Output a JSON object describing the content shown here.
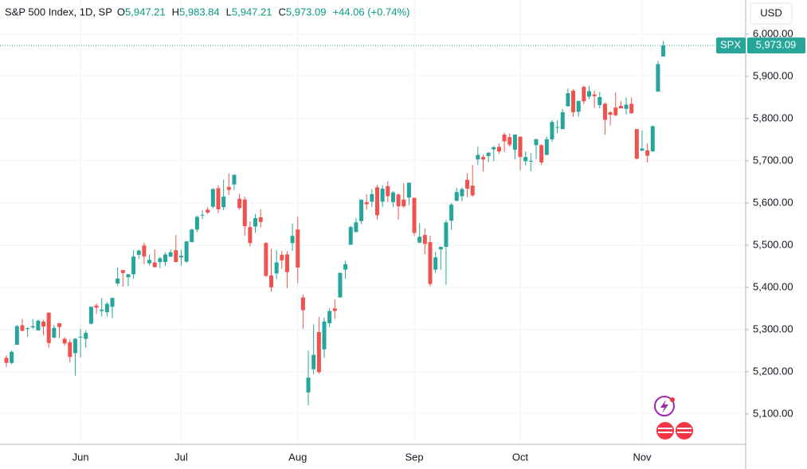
{
  "header": {
    "symbol": "S&P 500 Index, 1D, SP",
    "open_label": "O",
    "open": "5,947.21",
    "high_label": "H",
    "high": "5,983.84",
    "low_label": "L",
    "low": "5,947.21",
    "close_label": "C",
    "close": "5,973.09",
    "change": "+44.06 (+0.74%)"
  },
  "currency": "USD",
  "chart_data": {
    "type": "candlestick",
    "categories": [
      null,
      null,
      null,
      null,
      null,
      null,
      null,
      null,
      null,
      null,
      null,
      null,
      null,
      null,
      "Jun",
      null,
      null,
      null,
      null,
      null,
      null,
      null,
      null,
      null,
      null,
      null,
      null,
      null,
      null,
      null,
      null,
      null,
      null,
      "Jul",
      null,
      null,
      null,
      null,
      null,
      null,
      null,
      null,
      null,
      null,
      null,
      null,
      null,
      null,
      null,
      null,
      null,
      null,
      null,
      null,
      null,
      "Aug",
      null,
      null,
      null,
      null,
      null,
      null,
      null,
      null,
      null,
      null,
      null,
      null,
      null,
      null,
      null,
      null,
      null,
      null,
      null,
      null,
      null,
      "Sep",
      null,
      null,
      null,
      null,
      null,
      null,
      null,
      null,
      null,
      null,
      null,
      null,
      null,
      null,
      null,
      null,
      null,
      null,
      null,
      "Oct",
      null,
      null,
      null,
      null,
      null,
      null,
      null,
      null,
      null,
      null,
      null,
      null,
      null,
      null,
      null,
      null,
      null,
      null,
      null,
      null,
      null,
      null,
      "Nov",
      null,
      null,
      null,
      null
    ],
    "open": [
      5233,
      5221,
      5264,
      5310,
      5303,
      5305,
      5298,
      5319,
      5340,
      5281,
      5315,
      5278,
      5270,
      5244,
      5283,
      5278,
      5314,
      5357,
      5344,
      5341,
      5354,
      5409,
      5441,
      5424,
      5431,
      5477,
      5499,
      5457,
      5459,
      5460,
      5460,
      5473,
      5488,
      5471,
      5461,
      5507,
      5537,
      5572,
      5584,
      5591,
      5635,
      5590,
      5638,
      5644,
      5610,
      5608,
      5543,
      5544,
      5566,
      5505,
      5428,
      5433,
      5477,
      5478,
      5505,
      5537,
      5376,
      5151,
      5206,
      5294,
      5253,
      5315,
      5350,
      5376,
      5442,
      5501,
      5531,
      5557,
      5602,
      5603,
      5637,
      5603,
      5640,
      5602,
      5620,
      5608,
      5613,
      5612,
      5506,
      5524,
      5507,
      5442,
      5490,
      5496,
      5558,
      5605,
      5616,
      5655,
      5641,
      5703,
      5709,
      5711,
      5727,
      5733,
      5762,
      5756,
      5726,
      5757,
      5699,
      5698,
      5737,
      5737,
      5714,
      5751,
      5778,
      5775,
      5829,
      5866,
      5816,
      5875,
      5852,
      5857,
      5832,
      5835,
      5815,
      5826,
      5830,
      5823,
      5835,
      5775,
      5724,
      5725,
      5722,
      5864,
      5947.21
    ],
    "high": [
      5239,
      5250,
      5311,
      5325,
      5305,
      5325,
      5324,
      5323,
      5341,
      5311,
      5315,
      5282,
      5276,
      5280,
      5302,
      5298,
      5354,
      5362,
      5375,
      5365,
      5375,
      5447,
      5441,
      5432,
      5488,
      5490,
      5506,
      5478,
      5490,
      5472,
      5483,
      5490,
      5524,
      5489,
      5509,
      5539,
      5570,
      5583,
      5590,
      5635,
      5642,
      5655,
      5670,
      5667,
      5622,
      5615,
      5557,
      5574,
      5585,
      5508,
      5491,
      5488,
      5487,
      5486,
      5551,
      5567,
      5383,
      5250,
      5312,
      5330,
      5328,
      5351,
      5371,
      5436,
      5463,
      5546,
      5564,
      5608,
      5621,
      5633,
      5643,
      5642,
      5652,
      5628,
      5623,
      5647,
      5648,
      5613,
      5552,
      5540,
      5522,
      5484,
      5497,
      5560,
      5600,
      5636,
      5637,
      5670,
      5690,
      5733,
      5715,
      5721,
      5735,
      5741,
      5767,
      5765,
      5763,
      5758,
      5722,
      5718,
      5752,
      5739,
      5757,
      5796,
      5796,
      5822,
      5871,
      5870,
      5842,
      5878,
      5878,
      5866,
      5863,
      5838,
      5817,
      5862,
      5842,
      5850,
      5850,
      5775,
      5772,
      5741,
      5783,
      5936,
      5983.84
    ],
    "low": [
      5211,
      5218,
      5264,
      5296,
      5283,
      5302,
      5297,
      5286,
      5257,
      5279,
      5280,
      5262,
      5222,
      5191,
      5234,
      5257,
      5312,
      5337,
      5331,
      5331,
      5327,
      5403,
      5402,
      5403,
      5420,
      5468,
      5455,
      5452,
      5447,
      5446,
      5451,
      5471,
      5459,
      5451,
      5458,
      5507,
      5531,
      5562,
      5574,
      5587,
      5576,
      5583,
      5619,
      5631,
      5584,
      5522,
      5497,
      5529,
      5542,
      5425,
      5390,
      5420,
      5444,
      5398,
      5487,
      5410,
      5302,
      5120,
      5194,
      5195,
      5233,
      5306,
      5325,
      5376,
      5420,
      5501,
      5531,
      5550,
      5584,
      5591,
      5560,
      5590,
      5602,
      5590,
      5560,
      5588,
      5595,
      5522,
      5505,
      5479,
      5402,
      5434,
      5442,
      5406,
      5536,
      5604,
      5604,
      5614,
      5615,
      5690,
      5675,
      5697,
      5699,
      5716,
      5721,
      5733,
      5703,
      5677,
      5689,
      5675,
      5704,
      5690,
      5713,
      5745,
      5765,
      5775,
      5828,
      5804,
      5804,
      5834,
      5846,
      5825,
      5824,
      5762,
      5784,
      5805,
      5824,
      5810,
      5811,
      5703,
      5723,
      5696,
      5722,
      5864,
      5947.21
    ],
    "close": [
      5221,
      5247,
      5308,
      5297,
      5303,
      5308,
      5321,
      5307,
      5268,
      5304,
      5306,
      5267,
      5235,
      5278,
      5283,
      5292,
      5354,
      5352,
      5347,
      5361,
      5375,
      5421,
      5434,
      5431,
      5473,
      5487,
      5473,
      5465,
      5448,
      5469,
      5478,
      5483,
      5460,
      5475,
      5509,
      5537,
      5567,
      5572,
      5577,
      5633,
      5585,
      5615,
      5631,
      5667,
      5588,
      5545,
      5505,
      5564,
      5555,
      5427,
      5400,
      5459,
      5464,
      5436,
      5522,
      5447,
      5346,
      5186,
      5240,
      5199,
      5319,
      5344,
      5344,
      5434,
      5455,
      5543,
      5554,
      5608,
      5597,
      5621,
      5571,
      5634,
      5616,
      5625,
      5592,
      5592,
      5648,
      5529,
      5520,
      5503,
      5408,
      5471,
      5496,
      5554,
      5596,
      5626,
      5633,
      5634,
      5618,
      5714,
      5703,
      5719,
      5732,
      5722,
      5746,
      5738,
      5762,
      5709,
      5709,
      5700,
      5751,
      5696,
      5751,
      5792,
      5780,
      5815,
      5860,
      5815,
      5842,
      5841,
      5865,
      5853,
      5851,
      5797,
      5809,
      5808,
      5824,
      5833,
      5813,
      5705,
      5729,
      5712,
      5782,
      5929,
      5973.09
    ],
    "up_color": "#26a69a",
    "down_color": "#ef5350",
    "ylim": [
      5028,
      6081
    ],
    "yticks": [
      {
        "value": 5100,
        "label": "5,100.00"
      },
      {
        "value": 5200,
        "label": "5,200.00"
      },
      {
        "value": 5300,
        "label": "5,300.00"
      },
      {
        "value": 5400,
        "label": "5,400.00"
      },
      {
        "value": 5500,
        "label": "5,500.00"
      },
      {
        "value": 5600,
        "label": "5,600.00"
      },
      {
        "value": 5700,
        "label": "5,700.00"
      },
      {
        "value": 5800,
        "label": "5,800.00"
      },
      {
        "value": 5900,
        "label": "5,900.00"
      },
      {
        "value": 6000,
        "label": "6,000.00"
      }
    ],
    "grid": true,
    "last_price": {
      "name": "SPX",
      "value": 5973.09,
      "label": "5,973.09"
    }
  }
}
